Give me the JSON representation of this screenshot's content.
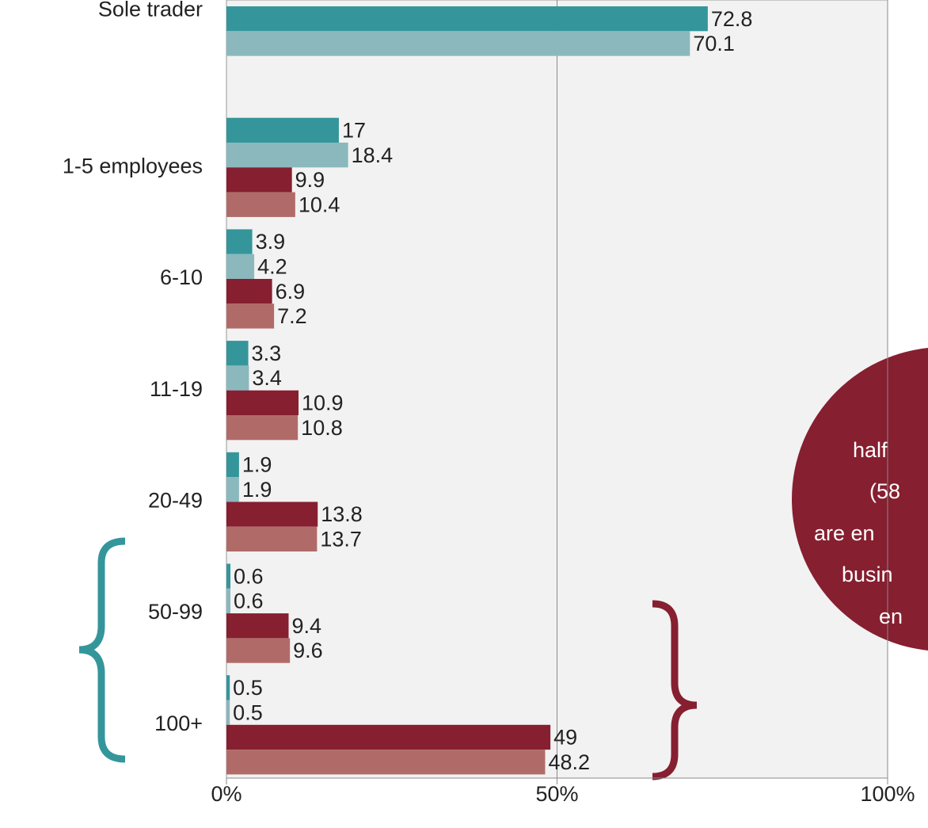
{
  "chart_data": {
    "type": "barh",
    "categories": [
      "Sole trader",
      "1-5 employees",
      "6-10",
      "11-19",
      "20-49",
      "50-99",
      "100+"
    ],
    "series": [
      {
        "color": "#34969b",
        "values": [
          72.8,
          17,
          3.9,
          3.3,
          1.9,
          0.6,
          0.5
        ]
      },
      {
        "color": "#8ab8bd",
        "values": [
          70.1,
          18.4,
          4.2,
          3.4,
          1.9,
          0.6,
          0.5
        ]
      },
      {
        "color": "#861f30",
        "values": [
          null,
          9.9,
          6.9,
          10.9,
          13.8,
          9.4,
          49
        ]
      },
      {
        "color": "#b06b68",
        "values": [
          null,
          10.4,
          7.2,
          10.8,
          13.7,
          9.6,
          48.2
        ]
      }
    ],
    "xlim": [
      0,
      100
    ],
    "xticks": [
      {
        "value": 0,
        "label": "0%"
      },
      {
        "value": 50,
        "label": "50%"
      },
      {
        "value": 100,
        "label": "100%"
      }
    ],
    "grid": true,
    "annotation": [
      "half",
      "(58",
      "are en",
      "busin",
      "en"
    ]
  }
}
